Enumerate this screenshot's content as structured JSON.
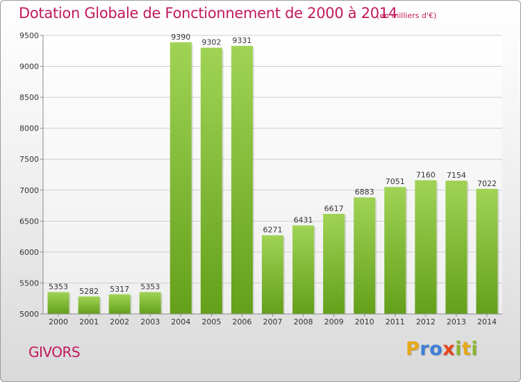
{
  "header": {
    "title": "Dotation Globale de Fonctionnement de 2000 à 2014",
    "unit_note": "(en milliers d'€)"
  },
  "footer": {
    "city": "GIVORS",
    "logo_letters": [
      {
        "ch": "P",
        "color": "#e6a817"
      },
      {
        "ch": "r",
        "color": "#3d7fd6"
      },
      {
        "ch": "o",
        "color": "#3d7fd6"
      },
      {
        "ch": "x",
        "color": "#e6451d"
      },
      {
        "ch": "i",
        "color": "#8ab52d"
      },
      {
        "ch": "t",
        "color": "#e6a817"
      },
      {
        "ch": "i",
        "color": "#8ab52d"
      }
    ]
  },
  "colors": {
    "bar_light": "#a0d355",
    "bar_dark": "#64a01a",
    "title": "#c2185b",
    "grid": "#cfcfcf"
  },
  "chart_data": {
    "type": "bar",
    "categories": [
      "2000",
      "2001",
      "2002",
      "2003",
      "2004",
      "2005",
      "2006",
      "2007",
      "2008",
      "2009",
      "2010",
      "2011",
      "2012",
      "2013",
      "2014"
    ],
    "values": [
      5353,
      5282,
      5317,
      5353,
      9390,
      9302,
      9331,
      6271,
      6431,
      6617,
      6883,
      7051,
      7160,
      7154,
      7022
    ],
    "ylim": [
      5000,
      9500
    ],
    "yticks": [
      5000,
      5500,
      6000,
      6500,
      7000,
      7500,
      8000,
      8500,
      9000,
      9500
    ],
    "grid": true,
    "data_labels": true
  }
}
